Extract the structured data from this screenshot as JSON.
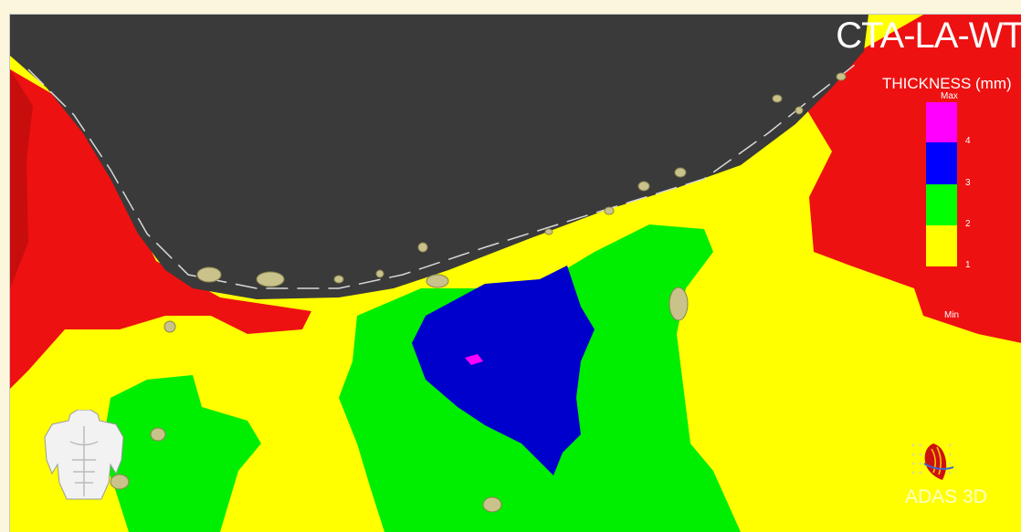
{
  "window": {
    "title": "CTA-LA-WT"
  },
  "legend": {
    "title": "THICKNESS (mm)",
    "max_label": "Max",
    "min_label": "Min",
    "ticks": [
      "4",
      "3",
      "2",
      "1"
    ],
    "colors": [
      "#ff00ff",
      "#0000ff",
      "#00ff00",
      "#ffff00",
      "#ff0000"
    ]
  },
  "map_colors": {
    "thick": "#ff0000",
    "yellow": "#ffff00",
    "green": "#00ff00",
    "blue": "#0000cc",
    "magenta": "#ff00ff",
    "cavity": "#3a3a3a",
    "marker": "#c9c28a"
  },
  "orientation": {
    "icon": "torso-icon"
  },
  "brand": {
    "name": "ADAS 3D",
    "icon": "heart-logo-icon"
  }
}
